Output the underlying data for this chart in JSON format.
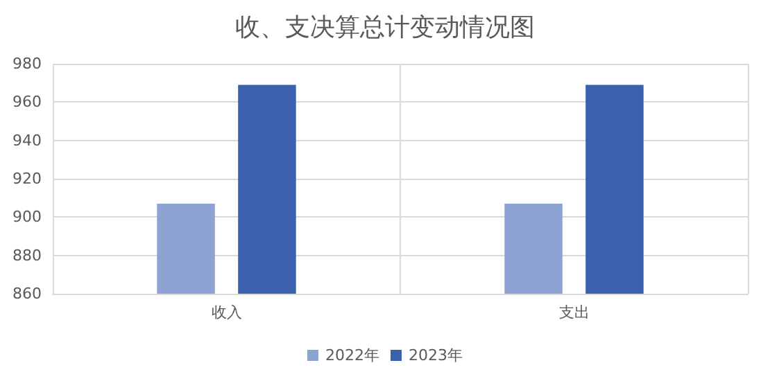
{
  "chart_data": {
    "type": "bar",
    "title": "收、支决算总计变动情况图",
    "categories": [
      "收入",
      "支出"
    ],
    "series": [
      {
        "name": "2022年",
        "color": "#8fa2d4",
        "values": [
          907,
          907
        ]
      },
      {
        "name": "2023年",
        "color": "#3a62ac",
        "values": [
          969,
          969
        ]
      }
    ],
    "ylim": [
      860,
      980
    ],
    "yticks": [
      860,
      880,
      900,
      920,
      940,
      960,
      980
    ],
    "grid": true,
    "legend": "bottom"
  }
}
